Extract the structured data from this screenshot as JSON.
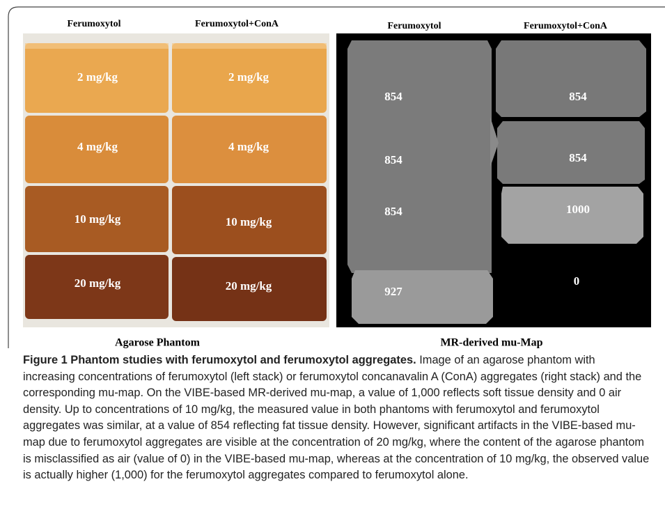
{
  "figure": {
    "panels": [
      {
        "columns": [
          "Ferumoxytol",
          "Ferumoxytol+ConA"
        ],
        "labels": [
          [
            "2 mg/kg",
            "2 mg/kg"
          ],
          [
            "4 mg/kg",
            "4 mg/kg"
          ],
          [
            "10 mg/kg",
            "10 mg/kg"
          ],
          [
            "20 mg/kg",
            "20 mg/kg"
          ]
        ],
        "caption": "Agarose Phantom"
      },
      {
        "columns": [
          "Ferumoxytol",
          "Ferumoxytol+ConA"
        ],
        "labels": [
          [
            854,
            854
          ],
          [
            854,
            854
          ],
          [
            854,
            1000
          ],
          [
            927,
            0
          ]
        ],
        "caption": "MR-derived mu-Map"
      }
    ],
    "caption": {
      "title": "Figure 1 Phantom studies with ferumoxytol and ferumoxytol aggregates.",
      "text": "Image of an agarose phantom with increasing concentrations of ferumoxytol (left stack) or ferumoxytol concanavalin A (ConA) aggregates (right stack) and the corresponding mu-map. On the VIBE-based MR-derived mu-map, a value of 1,000 reflects soft tissue density and 0 air density. Up to concentrations of 10 mg/kg, the measured value in both phantoms with ferumoxytol and ferumoxytol aggregates was similar, at a value of 854 reflecting fat tissue density. However, significant artifacts in the VIBE-based mu-map due to ferumoxytol aggregates are visible at the concentration of 20 mg/kg, where the content of the agarose phantom is misclassified as air (value of 0) in the VIBE-based mu-map, whereas at the concentration of 10 mg/kg, the observed value is actually higher (1,000) for the ferumoxytol aggregates compared to ferumoxytol alone."
    }
  }
}
